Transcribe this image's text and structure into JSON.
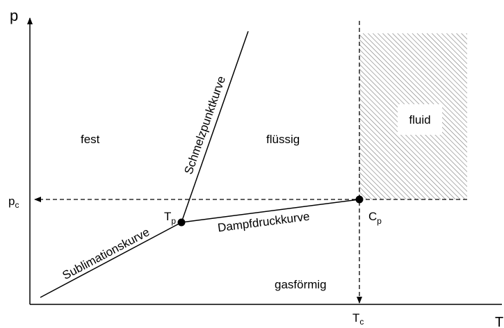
{
  "axes": {
    "y_label": "p",
    "x_label": "T"
  },
  "regions": {
    "solid": "fest",
    "liquid": "flüssig",
    "gas": "gasförmig",
    "fluid": "fluid"
  },
  "curves": {
    "sublimation": "Sublimationskurve",
    "melting": "Schmelzpunktkurve",
    "vapor": "Dampfdruckkurve"
  },
  "points": {
    "triple": {
      "symbol": "T",
      "subscript": "p"
    },
    "critical": {
      "symbol": "C",
      "subscript": "p"
    }
  },
  "critical_values": {
    "pressure": {
      "symbol": "p",
      "subscript": "c"
    },
    "temperature": {
      "symbol": "T",
      "subscript": "c"
    }
  }
}
